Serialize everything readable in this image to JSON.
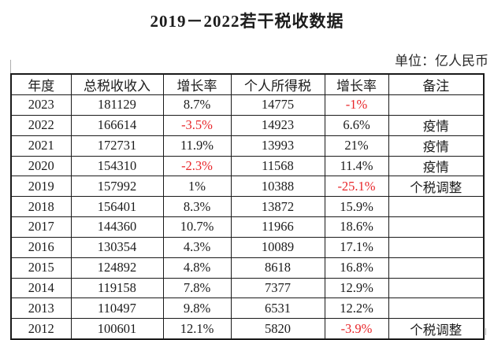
{
  "page": {
    "title": "2019－2022若干税收数据",
    "unit_label": "单位：亿人民币"
  },
  "table": {
    "headers": [
      "年度",
      "总税收收入",
      "增长率",
      "个人所得税",
      "增长率",
      "备注"
    ],
    "rows": [
      {
        "cells": [
          "2023",
          "181129",
          "8.7%",
          "14775",
          "-1%",
          ""
        ],
        "red_cols": [
          4
        ]
      },
      {
        "cells": [
          "2022",
          "166614",
          "-3.5%",
          "14923",
          "6.6%",
          "疫情"
        ],
        "red_cols": [
          2
        ]
      },
      {
        "cells": [
          "2021",
          "172731",
          "11.9%",
          "13993",
          "21%",
          "疫情"
        ],
        "red_cols": []
      },
      {
        "cells": [
          "2020",
          "154310",
          "-2.3%",
          "11568",
          "11.4%",
          "疫情"
        ],
        "red_cols": [
          2
        ]
      },
      {
        "cells": [
          "2019",
          "157992",
          "1%",
          "10388",
          "-25.1%",
          "个税调整"
        ],
        "red_cols": [
          4
        ]
      },
      {
        "cells": [
          "2018",
          "156401",
          "8.3%",
          "13872",
          "15.9%",
          ""
        ],
        "red_cols": []
      },
      {
        "cells": [
          "2017",
          "144360",
          "10.7%",
          "11966",
          "18.6%",
          ""
        ],
        "red_cols": []
      },
      {
        "cells": [
          "2016",
          "130354",
          "4.3%",
          "10089",
          "17.1%",
          ""
        ],
        "red_cols": []
      },
      {
        "cells": [
          "2015",
          "124892",
          "4.8%",
          "8618",
          "16.8%",
          ""
        ],
        "red_cols": []
      },
      {
        "cells": [
          "2014",
          "119158",
          "7.8%",
          "7377",
          "12.9%",
          ""
        ],
        "red_cols": []
      },
      {
        "cells": [
          "2013",
          "110497",
          "9.8%",
          "6531",
          "12.2%",
          ""
        ],
        "red_cols": []
      },
      {
        "cells": [
          "2012",
          "100601",
          "12.1%",
          "5820",
          "-3.9%",
          "个税调整"
        ],
        "red_cols": [
          4
        ]
      }
    ]
  },
  "colors": {
    "negative_value": "#e8262a",
    "text": "#1c1c1c",
    "border": "#1a1a1a"
  }
}
